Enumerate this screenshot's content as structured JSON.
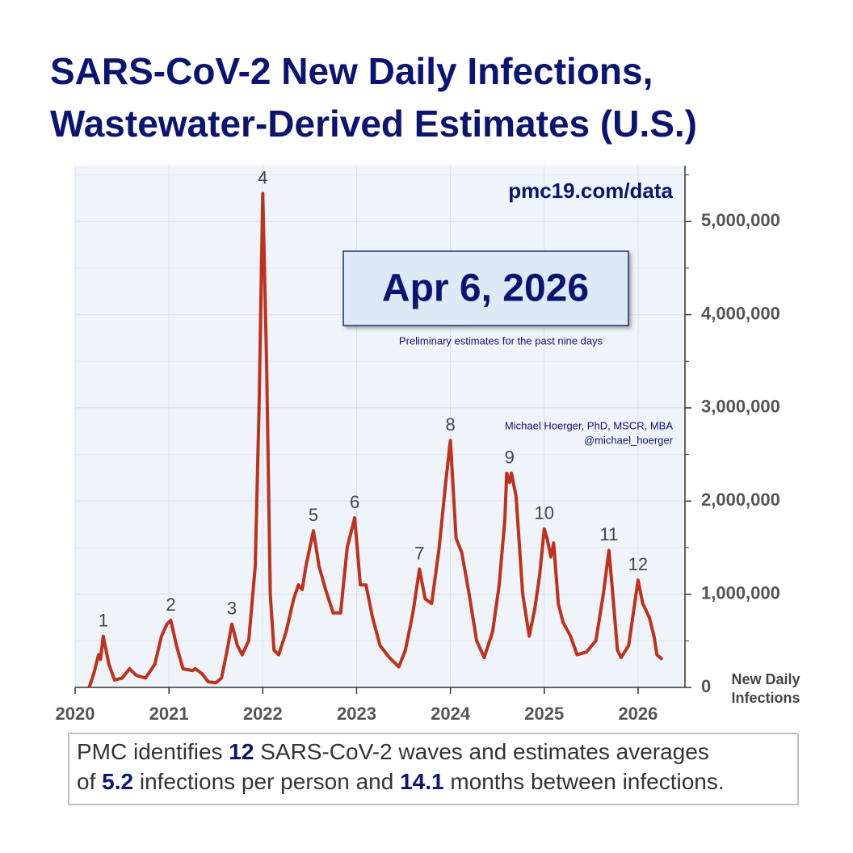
{
  "chart_data": {
    "type": "line",
    "title": [
      "SARS-CoV-2 New Daily Infections,",
      "Wastewater-Derived Estimates (U.S.)"
    ],
    "source": "pmc19.com/data",
    "date": "Apr 6, 2026",
    "date_note": "Preliminary estimates for the past nine days",
    "author": [
      "Michael Hoerger, PhD, MSCR, MBA",
      "@michael_hoerger"
    ],
    "y_label": [
      "New Daily",
      "Infections"
    ],
    "x": [
      2020.15,
      2020.2,
      2020.25,
      2020.27,
      2020.3,
      2020.36,
      2020.42,
      2020.5,
      2020.58,
      2020.65,
      2020.75,
      2020.85,
      2020.92,
      2020.98,
      2021.02,
      2021.08,
      2021.15,
      2021.25,
      2021.28,
      2021.35,
      2021.42,
      2021.5,
      2021.56,
      2021.62,
      2021.67,
      2021.73,
      2021.78,
      2021.85,
      2021.92,
      2021.96,
      2022.0,
      2022.04,
      2022.08,
      2022.12,
      2022.17,
      2022.25,
      2022.33,
      2022.38,
      2022.42,
      2022.46,
      2022.54,
      2022.6,
      2022.67,
      2022.75,
      2022.83,
      2022.9,
      2022.98,
      2023.04,
      2023.1,
      2023.17,
      2023.25,
      2023.35,
      2023.45,
      2023.52,
      2023.6,
      2023.67,
      2023.73,
      2023.8,
      2023.88,
      2023.95,
      2024.0,
      2024.06,
      2024.12,
      2024.2,
      2024.28,
      2024.36,
      2024.45,
      2024.52,
      2024.58,
      2024.6,
      2024.63,
      2024.65,
      2024.7,
      2024.77,
      2024.84,
      2024.9,
      2024.95,
      2025.0,
      2025.03,
      2025.07,
      2025.1,
      2025.15,
      2025.2,
      2025.28,
      2025.35,
      2025.45,
      2025.55,
      2025.63,
      2025.69,
      2025.73,
      2025.78,
      2025.82,
      2025.9,
      2025.95,
      2026.0,
      2026.05,
      2026.12,
      2026.17,
      2026.2,
      2026.26
    ],
    "series": [
      {
        "name": "New Daily Infections",
        "color": "#c0301a",
        "values": [
          0,
          150000,
          350000,
          300000,
          550000,
          250000,
          80000,
          100000,
          200000,
          130000,
          100000,
          250000,
          550000,
          680000,
          720000,
          450000,
          200000,
          180000,
          200000,
          150000,
          60000,
          50000,
          100000,
          400000,
          680000,
          450000,
          350000,
          500000,
          1300000,
          3000000,
          5300000,
          3500000,
          1000000,
          400000,
          350000,
          600000,
          950000,
          1100000,
          1050000,
          1300000,
          1680000,
          1300000,
          1050000,
          800000,
          800000,
          1500000,
          1820000,
          1100000,
          1100000,
          750000,
          450000,
          320000,
          220000,
          400000,
          800000,
          1270000,
          950000,
          900000,
          1500000,
          2200000,
          2650000,
          1600000,
          1450000,
          1000000,
          500000,
          320000,
          600000,
          1100000,
          1800000,
          2300000,
          2200000,
          2300000,
          2050000,
          1000000,
          550000,
          850000,
          1200000,
          1700000,
          1600000,
          1400000,
          1550000,
          900000,
          700000,
          550000,
          350000,
          380000,
          500000,
          1000000,
          1470000,
          1000000,
          400000,
          320000,
          450000,
          800000,
          1150000,
          900000,
          750000,
          550000,
          350000,
          300000
        ]
      }
    ],
    "annotations": [
      {
        "text": "1",
        "x": 2020.3,
        "y": 550000
      },
      {
        "text": "2",
        "x": 2021.02,
        "y": 720000
      },
      {
        "text": "3",
        "x": 2021.67,
        "y": 680000
      },
      {
        "text": "4",
        "x": 2022.0,
        "y": 5300000
      },
      {
        "text": "5",
        "x": 2022.54,
        "y": 1680000
      },
      {
        "text": "6",
        "x": 2022.98,
        "y": 1820000
      },
      {
        "text": "7",
        "x": 2023.67,
        "y": 1270000
      },
      {
        "text": "8",
        "x": 2024.0,
        "y": 2650000
      },
      {
        "text": "9",
        "x": 2024.63,
        "y": 2300000
      },
      {
        "text": "10",
        "x": 2025.0,
        "y": 1700000
      },
      {
        "text": "11",
        "x": 2025.69,
        "y": 1470000
      },
      {
        "text": "12",
        "x": 2026.0,
        "y": 1150000
      }
    ],
    "xlim": [
      2020,
      2026.5
    ],
    "xticks": [
      2020,
      2021,
      2022,
      2023,
      2024,
      2025,
      2026
    ],
    "ylim": [
      0,
      5600000
    ],
    "yticks": [
      0,
      {
        "value": 1000000,
        "label": "1,000,000"
      },
      {
        "value": 2000000,
        "label": "2,000,000"
      },
      {
        "value": 3000000,
        "label": "3,000,000"
      },
      {
        "value": 4000000,
        "label": "4,000,000"
      },
      {
        "value": 5000000,
        "label": "5,000,000"
      }
    ],
    "yticks_minor": [
      500000,
      1500000,
      2500000,
      3500000,
      4500000,
      5500000
    ],
    "grid": true,
    "footer": [
      [
        {
          "text": "PMC identifies ",
          "bold": false
        },
        {
          "text": "12",
          "bold": true
        },
        {
          "text": " SARS-CoV-2 waves and estimates averages",
          "bold": false
        }
      ],
      [
        {
          "text": "of ",
          "bold": false
        },
        {
          "text": "5.2",
          "bold": true
        },
        {
          "text": " infections per person and ",
          "bold": false
        },
        {
          "text": "14.1",
          "bold": true
        },
        {
          "text": " months between infections.",
          "bold": false
        }
      ]
    ]
  }
}
